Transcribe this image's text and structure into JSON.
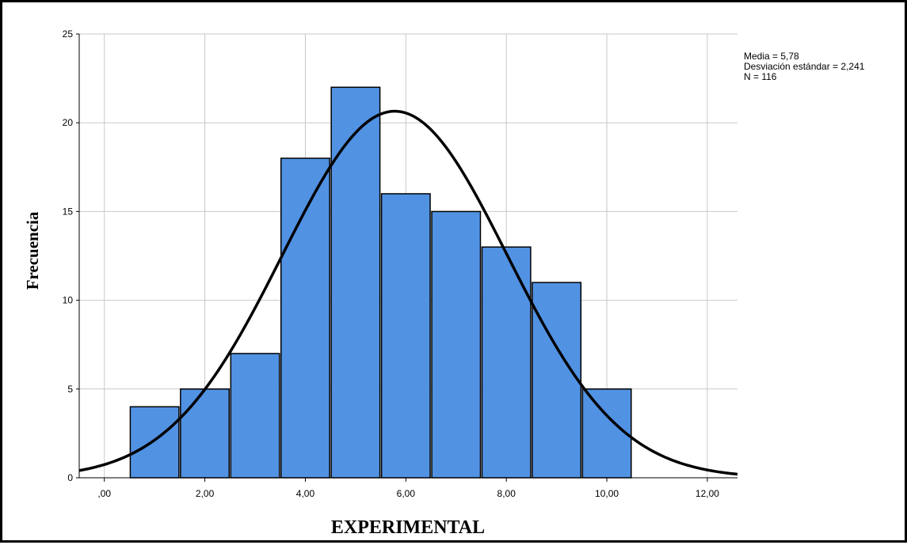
{
  "chart_data": {
    "type": "bar",
    "subtype": "histogram-with-normal-curve",
    "xlabel": "EXPERIMENTAL",
    "ylabel": "Frecuencia",
    "xlim": [
      -0.5,
      12.6
    ],
    "ylim": [
      0,
      25
    ],
    "grid": true,
    "bin_width": 1,
    "bins": [
      {
        "center": 1,
        "value": 4
      },
      {
        "center": 2,
        "value": 5
      },
      {
        "center": 3,
        "value": 7
      },
      {
        "center": 4,
        "value": 18
      },
      {
        "center": 5,
        "value": 22
      },
      {
        "center": 6,
        "value": 16
      },
      {
        "center": 7,
        "value": 15
      },
      {
        "center": 8,
        "value": 13
      },
      {
        "center": 9,
        "value": 11
      },
      {
        "center": 10,
        "value": 5
      }
    ],
    "x_ticks": [
      {
        "value": 0,
        "label": ",00"
      },
      {
        "value": 2,
        "label": "2,00"
      },
      {
        "value": 4,
        "label": "4,00"
      },
      {
        "value": 6,
        "label": "6,00"
      },
      {
        "value": 8,
        "label": "8,00"
      },
      {
        "value": 10,
        "label": "10,00"
      },
      {
        "value": 12,
        "label": "12,00"
      }
    ],
    "y_ticks": [
      {
        "value": 0,
        "label": "0"
      },
      {
        "value": 5,
        "label": "5"
      },
      {
        "value": 10,
        "label": "10"
      },
      {
        "value": 15,
        "label": "15"
      },
      {
        "value": 20,
        "label": "20"
      },
      {
        "value": 25,
        "label": "25"
      }
    ],
    "normal_curve": {
      "mean": 5.78,
      "sd": 2.241,
      "n": 116
    },
    "stats": {
      "mean_label": "Media = 5,78",
      "sd_label": "Desviación estándar = 2,241",
      "n_label": "N = 116"
    },
    "colors": {
      "bar_fill": "#5192e3",
      "bar_stroke": "#000000",
      "curve": "#000000",
      "grid": "#c8c8c8"
    }
  }
}
